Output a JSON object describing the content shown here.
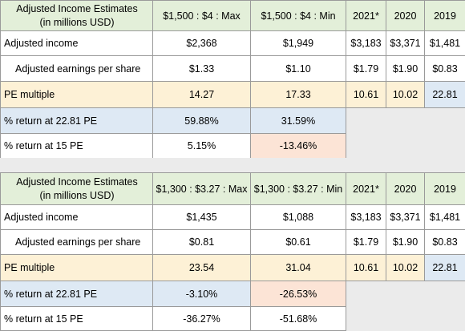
{
  "tables": [
    {
      "header": {
        "title_line1": "Adjusted Income Estimates",
        "title_line2": "(in millions USD)",
        "col_max": "$1,500 : $4 : Max",
        "col_min": "$1,500 : $4 : Min",
        "col_2021": "2021*",
        "col_2020": "2020",
        "col_2019": "2019"
      },
      "adjusted_income": {
        "label": "Adjusted income",
        "max": "$2,368",
        "min": "$1,949",
        "y2021": "$3,183",
        "y2020": "$3,371",
        "y2019": "$1,481"
      },
      "eps": {
        "label": "Adjusted earnings per share",
        "max": "$1.33",
        "min": "$1.10",
        "y2021": "$1.79",
        "y2020": "$1.90",
        "y2019": "$0.83"
      },
      "pe": {
        "label": "PE multiple",
        "max": "14.27",
        "min": "17.33",
        "y2021": "10.61",
        "y2020": "10.02",
        "y2019": "22.81"
      },
      "return_2281": {
        "label": "% return at 22.81 PE",
        "max": "59.88%",
        "min": "31.59%"
      },
      "return_15": {
        "label": "% return at 15 PE",
        "max": "5.15%",
        "min": "-13.46%"
      }
    },
    {
      "header": {
        "title_line1": "Adjusted Income Estimates",
        "title_line2": "(in millions USD)",
        "col_max": "$1,300 : $3.27 : Max",
        "col_min": "$1,300 : $3.27 : Min",
        "col_2021": "2021*",
        "col_2020": "2020",
        "col_2019": "2019"
      },
      "adjusted_income": {
        "label": "Adjusted income",
        "max": "$1,435",
        "min": "$1,088",
        "y2021": "$3,183",
        "y2020": "$3,371",
        "y2019": "$1,481"
      },
      "eps": {
        "label": "Adjusted earnings per share",
        "max": "$0.81",
        "min": "$0.61",
        "y2021": "$1.79",
        "y2020": "$1.90",
        "y2019": "$0.83"
      },
      "pe": {
        "label": "PE multiple",
        "max": "23.54",
        "min": "31.04",
        "y2021": "10.61",
        "y2020": "10.02",
        "y2019": "22.81"
      },
      "return_2281": {
        "label": "% return at 22.81 PE",
        "max": "-3.10%",
        "min": "-26.53%"
      },
      "return_15": {
        "label": "% return at 15 PE",
        "max": "-36.27%",
        "min": "-51.68%"
      }
    }
  ],
  "colors": {
    "header_green": "#e3efd9",
    "pe_row_yellow": "#fdf1d6",
    "highlight_blue": "#dee9f4",
    "negative_pink": "#fce4d6",
    "empty_gray": "#ebebeb"
  }
}
